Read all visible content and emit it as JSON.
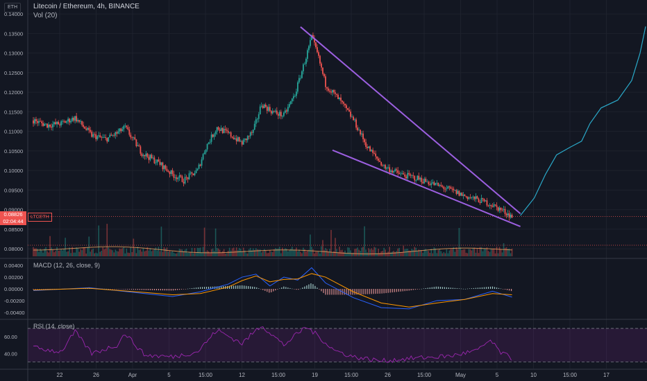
{
  "header": {
    "symbol_badge": "ETH",
    "title": "Litecoin / Ethereum, 4h, BINANCE",
    "volume_indicator": "Vol (20)"
  },
  "price_tag": {
    "value": "0.08826",
    "countdown": "02:04:44",
    "pair": "LTCETH",
    "color": "#ef5350"
  },
  "colors": {
    "background": "#131722",
    "up": "#26a69a",
    "down": "#ef5350",
    "trendline": "#9c5fe0",
    "projection": "#2aa8c8",
    "macd": "#2962ff",
    "signal": "#ff9800",
    "rsi": "#9c27b0"
  },
  "panes": {
    "macd_label": "MACD (12, 26, close, 9)",
    "rsi_label": "RSI (14, close)"
  },
  "chart_data": [
    {
      "type": "candlestick",
      "title": "Litecoin / Ethereum, 4h, BINANCE",
      "y_ticks": [
        "0.14000",
        "0.13500",
        "0.13000",
        "0.12500",
        "0.12000",
        "0.11500",
        "0.11000",
        "0.10500",
        "0.10000",
        "0.09500",
        "0.09000",
        "0.08500",
        "0.08000"
      ],
      "ylim": [
        0.0795,
        0.1418
      ],
      "x_ticks": [
        "22",
        "26",
        "Apr",
        "5",
        "15:00",
        "12",
        "15:00",
        "19",
        "15:00",
        "26",
        "15:00",
        "May",
        "5",
        "10",
        "15:00",
        "17"
      ],
      "close_path": [
        {
          "x": 0,
          "y": 0.1128
        },
        {
          "x": 10,
          "y": 0.1116
        },
        {
          "x": 20,
          "y": 0.112
        },
        {
          "x": 30,
          "y": 0.1135
        },
        {
          "x": 42,
          "y": 0.109
        },
        {
          "x": 52,
          "y": 0.108
        },
        {
          "x": 60,
          "y": 0.1095
        },
        {
          "x": 66,
          "y": 0.111
        },
        {
          "x": 78,
          "y": 0.1045
        },
        {
          "x": 90,
          "y": 0.102
        },
        {
          "x": 100,
          "y": 0.099
        },
        {
          "x": 108,
          "y": 0.0975
        },
        {
          "x": 118,
          "y": 0.1
        },
        {
          "x": 124,
          "y": 0.106
        },
        {
          "x": 132,
          "y": 0.111
        },
        {
          "x": 142,
          "y": 0.109
        },
        {
          "x": 150,
          "y": 0.107
        },
        {
          "x": 158,
          "y": 0.11
        },
        {
          "x": 164,
          "y": 0.117
        },
        {
          "x": 172,
          "y": 0.115
        },
        {
          "x": 180,
          "y": 0.114
        },
        {
          "x": 188,
          "y": 0.1195
        },
        {
          "x": 196,
          "y": 0.129
        },
        {
          "x": 200,
          "y": 0.134
        },
        {
          "x": 204,
          "y": 0.13
        },
        {
          "x": 210,
          "y": 0.122
        },
        {
          "x": 220,
          "y": 0.118
        },
        {
          "x": 230,
          "y": 0.113
        },
        {
          "x": 240,
          "y": 0.106
        },
        {
          "x": 252,
          "y": 0.101
        },
        {
          "x": 264,
          "y": 0.099
        },
        {
          "x": 276,
          "y": 0.098
        },
        {
          "x": 288,
          "y": 0.0965
        },
        {
          "x": 300,
          "y": 0.095
        },
        {
          "x": 310,
          "y": 0.0935
        },
        {
          "x": 320,
          "y": 0.0925
        },
        {
          "x": 328,
          "y": 0.0915
        },
        {
          "x": 336,
          "y": 0.09
        },
        {
          "x": 344,
          "y": 0.0883
        }
      ],
      "current_price": 0.08826,
      "trendlines": [
        {
          "name": "upper",
          "start": {
            "x": 192,
            "y": 0.1367
          },
          "end": {
            "x": 350,
            "y": 0.089
          }
        },
        {
          "name": "lower",
          "start": {
            "x": 215,
            "y": 0.1052
          },
          "end": {
            "x": 350,
            "y": 0.0857
          }
        }
      ],
      "projection": [
        {
          "x": 350,
          "y": 0.0885
        },
        {
          "x": 360,
          "y": 0.093
        },
        {
          "x": 368,
          "y": 0.099
        },
        {
          "x": 376,
          "y": 0.104
        },
        {
          "x": 386,
          "y": 0.106
        },
        {
          "x": 394,
          "y": 0.1075
        },
        {
          "x": 400,
          "y": 0.112
        },
        {
          "x": 408,
          "y": 0.116
        },
        {
          "x": 420,
          "y": 0.118
        },
        {
          "x": 430,
          "y": 0.123
        },
        {
          "x": 436,
          "y": 0.13
        },
        {
          "x": 440,
          "y": 0.1368
        }
      ],
      "volume_moving_average": "Vol (20)"
    },
    {
      "type": "line",
      "title": "MACD (12, 26, close, 9)",
      "y_ticks": [
        "0.00400",
        "0.00200",
        "0.00000",
        "-0.00200",
        "-0.00400"
      ],
      "ylim": [
        -0.0046,
        0.0046
      ],
      "series": [
        {
          "name": "MACD",
          "points": [
            {
              "x": 0,
              "y": -0.0003
            },
            {
              "x": 40,
              "y": 0.0002
            },
            {
              "x": 80,
              "y": -0.0008
            },
            {
              "x": 100,
              "y": -0.0013
            },
            {
              "x": 120,
              "y": -0.0005
            },
            {
              "x": 140,
              "y": 0.0008
            },
            {
              "x": 150,
              "y": 0.002
            },
            {
              "x": 160,
              "y": 0.0025
            },
            {
              "x": 170,
              "y": 0.0005
            },
            {
              "x": 180,
              "y": 0.002
            },
            {
              "x": 190,
              "y": 0.0015
            },
            {
              "x": 200,
              "y": 0.0036
            },
            {
              "x": 210,
              "y": 0.001
            },
            {
              "x": 230,
              "y": -0.0015
            },
            {
              "x": 250,
              "y": -0.0032
            },
            {
              "x": 270,
              "y": -0.0034
            },
            {
              "x": 290,
              "y": -0.002
            },
            {
              "x": 310,
              "y": -0.0018
            },
            {
              "x": 330,
              "y": -0.0004
            },
            {
              "x": 344,
              "y": -0.0014
            }
          ]
        },
        {
          "name": "Signal",
          "points": [
            {
              "x": 0,
              "y": -0.0002
            },
            {
              "x": 40,
              "y": 0.0001
            },
            {
              "x": 80,
              "y": -0.0006
            },
            {
              "x": 100,
              "y": -0.001
            },
            {
              "x": 120,
              "y": -0.0008
            },
            {
              "x": 140,
              "y": 0.0003
            },
            {
              "x": 150,
              "y": 0.0014
            },
            {
              "x": 160,
              "y": 0.0022
            },
            {
              "x": 170,
              "y": 0.0012
            },
            {
              "x": 180,
              "y": 0.0016
            },
            {
              "x": 190,
              "y": 0.0017
            },
            {
              "x": 200,
              "y": 0.0026
            },
            {
              "x": 210,
              "y": 0.002
            },
            {
              "x": 230,
              "y": -0.0005
            },
            {
              "x": 250,
              "y": -0.0024
            },
            {
              "x": 270,
              "y": -0.0031
            },
            {
              "x": 290,
              "y": -0.0024
            },
            {
              "x": 310,
              "y": -0.0018
            },
            {
              "x": 330,
              "y": -0.0008
            },
            {
              "x": 344,
              "y": -0.001
            }
          ]
        }
      ]
    },
    {
      "type": "line",
      "title": "RSI (14, close)",
      "y_ticks": [
        "60.00",
        "40.00"
      ],
      "ylim": [
        22,
        80
      ],
      "bands": [
        70,
        30
      ],
      "series": [
        {
          "name": "RSI",
          "points": [
            {
              "x": 0,
              "y": 47
            },
            {
              "x": 20,
              "y": 42
            },
            {
              "x": 30,
              "y": 66
            },
            {
              "x": 42,
              "y": 40
            },
            {
              "x": 60,
              "y": 50
            },
            {
              "x": 66,
              "y": 64
            },
            {
              "x": 80,
              "y": 38
            },
            {
              "x": 100,
              "y": 36
            },
            {
              "x": 118,
              "y": 42
            },
            {
              "x": 132,
              "y": 68
            },
            {
              "x": 150,
              "y": 52
            },
            {
              "x": 164,
              "y": 74
            },
            {
              "x": 180,
              "y": 50
            },
            {
              "x": 196,
              "y": 72
            },
            {
              "x": 204,
              "y": 62
            },
            {
              "x": 216,
              "y": 44
            },
            {
              "x": 230,
              "y": 36
            },
            {
              "x": 250,
              "y": 31
            },
            {
              "x": 270,
              "y": 34
            },
            {
              "x": 300,
              "y": 37
            },
            {
              "x": 320,
              "y": 44
            },
            {
              "x": 328,
              "y": 56
            },
            {
              "x": 336,
              "y": 41
            },
            {
              "x": 344,
              "y": 34
            }
          ]
        }
      ]
    }
  ]
}
